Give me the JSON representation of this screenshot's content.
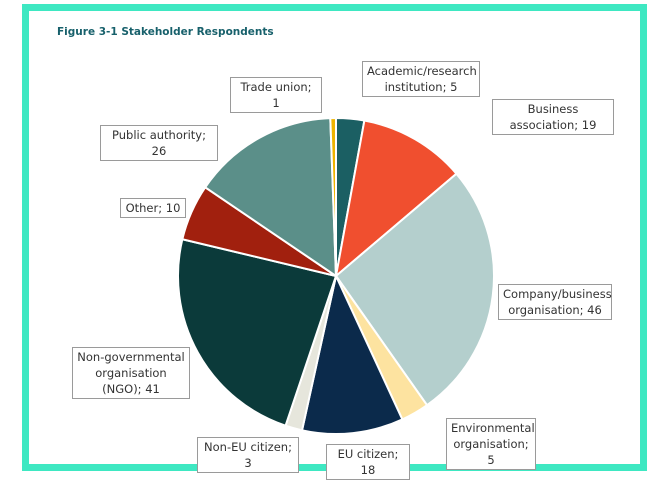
{
  "chart_data": {
    "type": "pie",
    "title": "Figure 3-1 Stakeholder Respondents",
    "values": [
      5,
      19,
      46,
      5,
      18,
      3,
      41,
      10,
      26,
      1
    ],
    "value_labels": [
      "Academic/research institution; 5",
      "Business association; 19",
      "Company/business organisation; 46",
      "Environmental organisation; 5",
      "EU citizen; 18",
      "Non-EU citizen; 3",
      "Non-governmental organisation (NGO); 41",
      "Other; 10",
      "Public authority; 26",
      "Trade union; 1"
    ],
    "colors": [
      "#1b5f63",
      "#f04f2f",
      "#b4cfcd",
      "#fde3a0",
      "#0b2a4b",
      "#e6e6dc",
      "#0b3a3a",
      "#a1200e",
      "#5b8f89",
      "#f0b400"
    ]
  }
}
